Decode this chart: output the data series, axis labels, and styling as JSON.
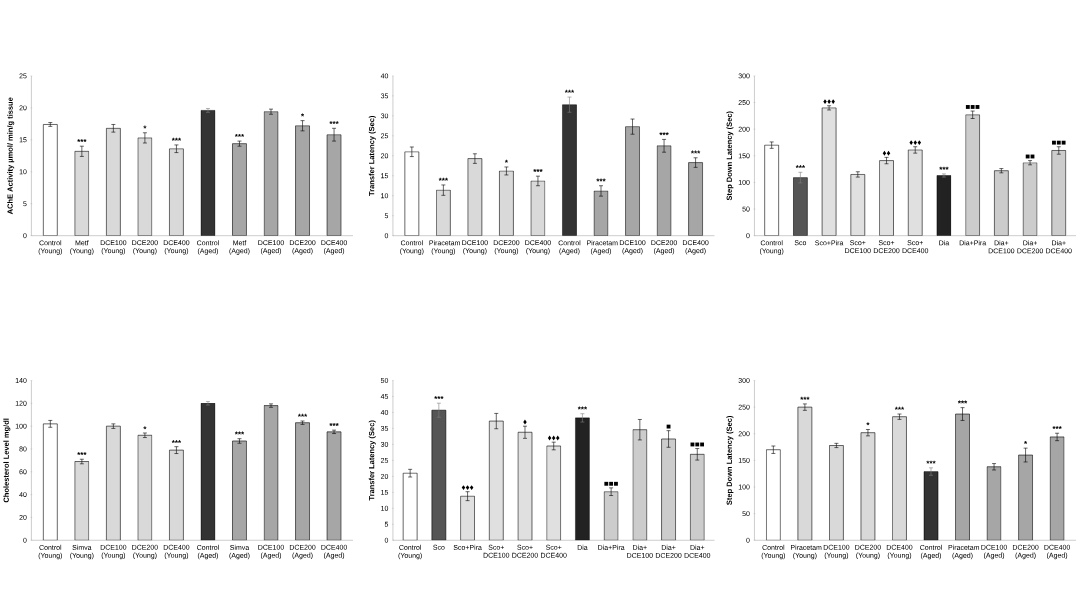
{
  "chart_data": [
    {
      "type": "bar",
      "ylabel": "AChE Activity µmol/ min/g tissue",
      "categories": [
        "Control (Young)",
        "Metf (Young)",
        "DCE100 (Young)",
        "DCE200 (Young)",
        "DCE400 (Young)",
        "Control (Aged)",
        "Metf (Aged)",
        "DCE100 (Aged)",
        "DCE200 (Aged)",
        "DCE400 (Aged)"
      ],
      "values": [
        17.4,
        13.2,
        16.8,
        15.3,
        13.6,
        19.6,
        14.4,
        19.4,
        17.2,
        15.8
      ],
      "errors": [
        0.3,
        0.8,
        0.6,
        0.8,
        0.6,
        0.3,
        0.4,
        0.4,
        0.8,
        1.0
      ],
      "colors": [
        "#ffffff",
        "#d9d9d9",
        "#d9d9d9",
        "#d9d9d9",
        "#d9d9d9",
        "#333333",
        "#a6a6a6",
        "#a6a6a6",
        "#a6a6a6",
        "#a6a6a6"
      ],
      "ylim": [
        0,
        25
      ],
      "yticks": [
        0,
        5,
        10,
        15,
        20,
        25
      ],
      "annotations": [
        {
          "text": "***",
          "x": "Metf (Young)",
          "y": 14.0
        },
        {
          "text": "*",
          "x": "DCE200 (Young)",
          "y": 16.1
        },
        {
          "text": "***",
          "x": "DCE400 (Young)",
          "y": 14.2
        },
        {
          "text": "***",
          "x": "Metf (Aged)",
          "y": 14.8
        },
        {
          "text": "*",
          "x": "DCE200 (Aged)",
          "y": 18.0
        },
        {
          "text": "***",
          "x": "DCE400 (Aged)",
          "y": 16.8
        }
      ]
    },
    {
      "type": "bar",
      "ylabel": "Transfer Latency (Sec)",
      "categories": [
        "Control (Young)",
        "Piracetam (Young)",
        "DCE100 (Young)",
        "DCE200 (Young)",
        "DCE400 (Young)",
        "Control (Aged)",
        "Piracetam (Aged)",
        "DCE100 (Aged)",
        "DCE200 (Aged)",
        "DCE400 (Aged)"
      ],
      "values": [
        21.0,
        11.4,
        19.3,
        16.2,
        13.7,
        32.8,
        11.2,
        27.3,
        22.5,
        18.3
      ],
      "errors": [
        1.2,
        1.3,
        1.2,
        1.0,
        1.2,
        1.9,
        1.3,
        1.9,
        1.6,
        1.2
      ],
      "colors": [
        "#ffffff",
        "#d9d9d9",
        "#d9d9d9",
        "#d9d9d9",
        "#d9d9d9",
        "#333333",
        "#a6a6a6",
        "#a6a6a6",
        "#a6a6a6",
        "#a6a6a6"
      ],
      "ylim": [
        0,
        40
      ],
      "yticks": [
        0,
        5,
        10,
        15,
        20,
        25,
        30,
        35,
        40
      ],
      "annotations": [
        {
          "text": "***",
          "x": "Piracetam (Young)",
          "y": 12.7
        },
        {
          "text": "*",
          "x": "DCE200 (Young)",
          "y": 17.2
        },
        {
          "text": "***",
          "x": "DCE400 (Young)",
          "y": 14.9
        },
        {
          "text": "***",
          "x": "Control (Aged)",
          "y": 34.7
        },
        {
          "text": "***",
          "x": "Piracetam (Aged)",
          "y": 12.5
        },
        {
          "text": "***",
          "x": "DCE200 (Aged)",
          "y": 24.1
        },
        {
          "text": "***",
          "x": "DCE400 (Aged)",
          "y": 19.5
        }
      ]
    },
    {
      "type": "bar",
      "ylabel": "Step Down Latency (Sec)",
      "categories": [
        "Control (Young)",
        "Sco",
        "Sco+Pira",
        "Sco+ DCE100",
        "Sco+ DCE200",
        "Sco+ DCE400",
        "Dia",
        "Dia+Pira",
        "Dia+ DCE100",
        "Dia+ DCE200",
        "Dia+ DCE400"
      ],
      "values": [
        170,
        109,
        240,
        115,
        141,
        161,
        113,
        227,
        122,
        137,
        160
      ],
      "errors": [
        6,
        10,
        4,
        5,
        6,
        6,
        3,
        7,
        4,
        4,
        7
      ],
      "colors": [
        "#ffffff",
        "#555555",
        "#e0e0e0",
        "#e0e0e0",
        "#e0e0e0",
        "#e0e0e0",
        "#222222",
        "#cccccc",
        "#cccccc",
        "#cccccc",
        "#cccccc"
      ],
      "ylim": [
        0,
        300
      ],
      "yticks": [
        0,
        50,
        100,
        150,
        200,
        250,
        300
      ],
      "annotations": [
        {
          "text": "***",
          "x": "Sco",
          "y": 119
        },
        {
          "text": "♦♦♦",
          "x": "Sco+Pira",
          "y": 244
        },
        {
          "text": "♦♦",
          "x": "Sco+ DCE200",
          "y": 147
        },
        {
          "text": "♦♦♦",
          "x": "Sco+ DCE400",
          "y": 167
        },
        {
          "text": "***",
          "x": "Dia",
          "y": 116
        },
        {
          "text": "■■■",
          "x": "Dia+Pira",
          "y": 234
        },
        {
          "text": "■■",
          "x": "Dia+ DCE200",
          "y": 141
        },
        {
          "text": "■■■",
          "x": "Dia+ DCE400",
          "y": 167
        }
      ]
    },
    {
      "type": "bar",
      "ylabel": "Cholesterol Level mg/dl",
      "categories": [
        "Control (Young)",
        "Simva (Young)",
        "DCE100 (Young)",
        "DCE200 (Young)",
        "DCE400 (Young)",
        "Control (Aged)",
        "Simva (Aged)",
        "DCE100 (Aged)",
        "DCE200 (Aged)",
        "DCE400 (Aged)"
      ],
      "values": [
        102,
        69,
        100,
        92,
        79,
        120,
        87,
        118,
        103,
        95
      ],
      "errors": [
        3,
        2,
        2,
        2,
        3,
        1.5,
        2,
        1.5,
        1.5,
        1.5
      ],
      "colors": [
        "#ffffff",
        "#d9d9d9",
        "#d9d9d9",
        "#d9d9d9",
        "#d9d9d9",
        "#333333",
        "#a6a6a6",
        "#a6a6a6",
        "#a6a6a6",
        "#a6a6a6"
      ],
      "ylim": [
        0,
        140
      ],
      "yticks": [
        0,
        20,
        40,
        60,
        80,
        100,
        120,
        140
      ],
      "annotations": [
        {
          "text": "***",
          "x": "Simva (Young)",
          "y": 71
        },
        {
          "text": "*",
          "x": "DCE200 (Young)",
          "y": 93.5
        },
        {
          "text": "***",
          "x": "DCE400 (Young)",
          "y": 81.5
        },
        {
          "text": "***",
          "x": "Simva (Aged)",
          "y": 89
        },
        {
          "text": "***",
          "x": "DCE200 (Aged)",
          "y": 104.5
        },
        {
          "text": "***",
          "x": "DCE400 (Aged)",
          "y": 96.5
        }
      ]
    },
    {
      "type": "bar",
      "ylabel": "Transfer Latency (Sec)",
      "categories": [
        "Control (Young)",
        "Sco",
        "Sco+Pira",
        "Sco+ DCE100",
        "Sco+ DCE200",
        "Sco+ DCE400",
        "Dia",
        "Dia+Pira",
        "Dia+ DCE100",
        "Dia+ DCE200",
        "Dia+ DCE400"
      ],
      "values": [
        21.0,
        40.7,
        13.8,
        37.3,
        33.8,
        29.5,
        38.3,
        15.2,
        34.6,
        31.7,
        26.9
      ],
      "errors": [
        1.2,
        2.2,
        1.4,
        2.4,
        1.9,
        1.2,
        1.3,
        1.2,
        3.2,
        2.6,
        1.8
      ],
      "colors": [
        "#ffffff",
        "#555555",
        "#e0e0e0",
        "#e0e0e0",
        "#e0e0e0",
        "#e0e0e0",
        "#222222",
        "#cccccc",
        "#cccccc",
        "#cccccc",
        "#cccccc"
      ],
      "ylim": [
        0,
        50
      ],
      "yticks": [
        0,
        5,
        10,
        15,
        20,
        25,
        30,
        35,
        40,
        45,
        50
      ],
      "annotations": [
        {
          "text": "***",
          "x": "Sco",
          "y": 42.9
        },
        {
          "text": "♦♦♦",
          "x": "Sco+Pira",
          "y": 15.2
        },
        {
          "text": "♦",
          "x": "Sco+ DCE200",
          "y": 35.7
        },
        {
          "text": "♦♦♦",
          "x": "Sco+ DCE400",
          "y": 30.7
        },
        {
          "text": "***",
          "x": "Dia",
          "y": 39.6
        },
        {
          "text": "■■■",
          "x": "Dia+Pira",
          "y": 16.4
        },
        {
          "text": "■",
          "x": "Dia+ DCE200",
          "y": 34.3
        },
        {
          "text": "■■■",
          "x": "Dia+ DCE400",
          "y": 28.7
        }
      ]
    },
    {
      "type": "bar",
      "ylabel": "Step Down Latency (Sec)",
      "categories": [
        "Control (Young)",
        "Piracetam (Young)",
        "DCE100 (Young)",
        "DCE200 (Young)",
        "DCE400 (Young)",
        "Control (Aged)",
        "Piracetam (Aged)",
        "DCE100 (Aged)",
        "DCE200 (Aged)",
        "DCE400 (Aged)"
      ],
      "values": [
        170,
        250,
        178,
        202,
        232,
        129,
        237,
        138,
        160,
        194
      ],
      "errors": [
        7,
        6,
        4,
        6,
        5,
        7,
        12,
        6,
        13,
        7
      ],
      "colors": [
        "#ffffff",
        "#d9d9d9",
        "#d9d9d9",
        "#d9d9d9",
        "#d9d9d9",
        "#333333",
        "#a6a6a6",
        "#a6a6a6",
        "#a6a6a6",
        "#a6a6a6"
      ],
      "ylim": [
        0,
        300
      ],
      "yticks": [
        0,
        50,
        100,
        150,
        200,
        250,
        300
      ],
      "annotations": [
        {
          "text": "***",
          "x": "Piracetam (Young)",
          "y": 256
        },
        {
          "text": "*",
          "x": "DCE200 (Young)",
          "y": 208
        },
        {
          "text": "***",
          "x": "DCE400 (Young)",
          "y": 237
        },
        {
          "text": "***",
          "x": "Control (Aged)",
          "y": 136
        },
        {
          "text": "***",
          "x": "Piracetam (Aged)",
          "y": 249
        },
        {
          "text": "*",
          "x": "DCE200 (Aged)",
          "y": 173
        },
        {
          "text": "***",
          "x": "DCE400 (Aged)",
          "y": 201
        }
      ]
    }
  ]
}
